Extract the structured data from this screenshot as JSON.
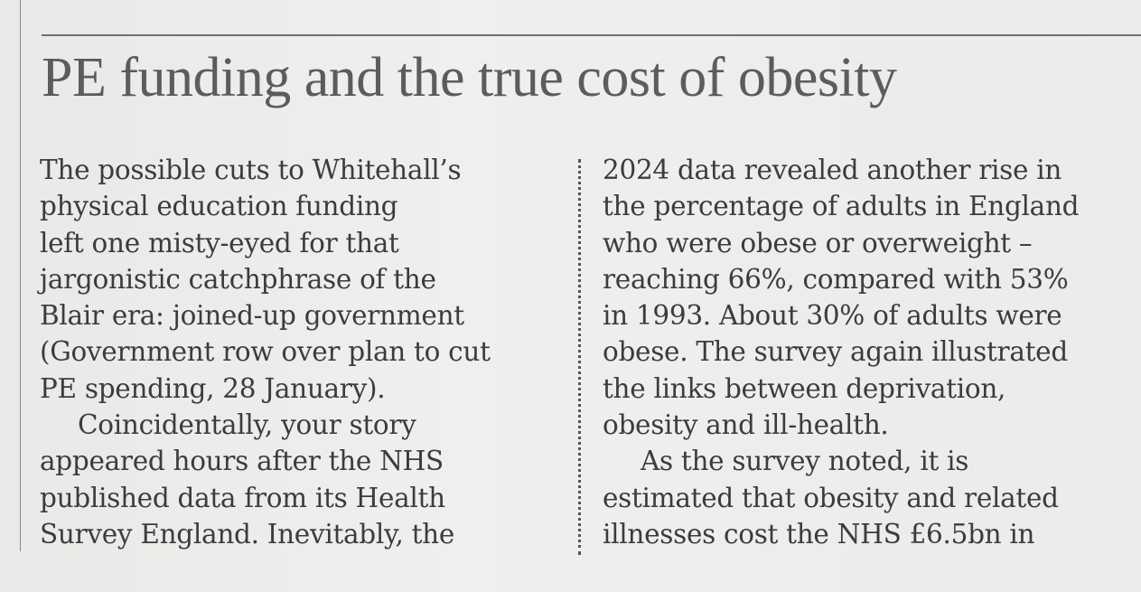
{
  "article": {
    "headline": "PE funding and the true cost of obesity",
    "left_column": [
      "The possible cuts to Whitehall’s",
      "physical education funding",
      "left one misty-eyed for that",
      "jargonistic catchphrase of the",
      "Blair era: joined-up government",
      "(Government row over plan to cut",
      "PE spending, 28 January).",
      "Coincidentally, your story",
      "appeared hours after the NHS",
      "published data from its Health",
      "Survey England. Inevitably, the"
    ],
    "right_column": [
      "2024 data revealed another rise in",
      "the percentage of adults in England",
      "who were obese or overweight –",
      "reaching 66%, compared with 53%",
      "in 1993. About 30% of adults were",
      "obese. The survey again illustrated",
      "the links between deprivation,",
      "obesity and ill-health.",
      "As the survey noted, it is",
      "estimated that obesity and related",
      "illnesses cost the NHS £6.5bn in"
    ]
  }
}
